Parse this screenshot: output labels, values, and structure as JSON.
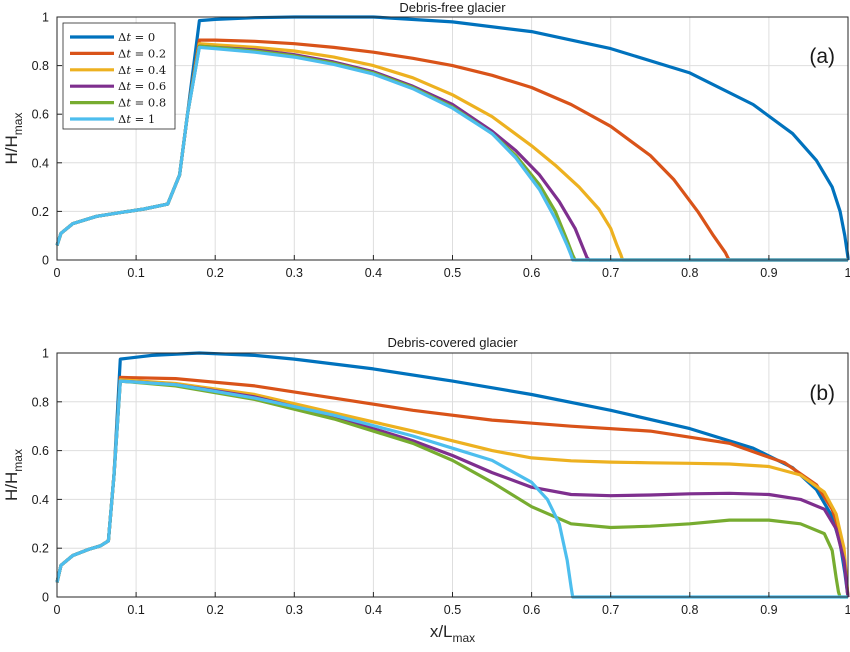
{
  "chart_data": [
    {
      "type": "line",
      "title": "Debris-free glacier",
      "panel_label": "(a)",
      "xlabel": "",
      "ylabel": "H/H",
      "ylabel_sub": "max",
      "xlim": [
        0,
        1
      ],
      "ylim": [
        0,
        1
      ],
      "xticks": [
        "0",
        "0.1",
        "0.2",
        "0.3",
        "0.4",
        "0.5",
        "0.6",
        "0.7",
        "0.8",
        "0.9",
        "1"
      ],
      "yticks": [
        "0",
        "0.2",
        "0.4",
        "0.6",
        "0.8",
        "1"
      ],
      "grid": true,
      "legend_position": "top-left",
      "series": [
        {
          "name": "Δt = 0",
          "var": "Δt",
          "val": "0",
          "color": "#0072BD",
          "x": [
            0,
            0.005,
            0.02,
            0.05,
            0.08,
            0.11,
            0.14,
            0.155,
            0.165,
            0.18,
            0.2,
            0.25,
            0.3,
            0.35,
            0.4,
            0.5,
            0.6,
            0.7,
            0.8,
            0.88,
            0.93,
            0.96,
            0.98,
            0.99,
            0.996,
            1.0,
            1.0
          ],
          "y": [
            0.06,
            0.11,
            0.15,
            0.18,
            0.195,
            0.21,
            0.23,
            0.35,
            0.6,
            0.985,
            0.99,
            0.997,
            1.0,
            1.0,
            1.0,
            0.98,
            0.94,
            0.87,
            0.77,
            0.64,
            0.52,
            0.41,
            0.3,
            0.2,
            0.1,
            0.01,
            0
          ]
        },
        {
          "name": "Δt = 0.2",
          "var": "Δt",
          "val": "0.2",
          "color": "#D95319",
          "x": [
            0,
            0.005,
            0.02,
            0.05,
            0.08,
            0.11,
            0.14,
            0.155,
            0.165,
            0.18,
            0.2,
            0.25,
            0.3,
            0.35,
            0.4,
            0.45,
            0.5,
            0.55,
            0.6,
            0.65,
            0.7,
            0.75,
            0.78,
            0.81,
            0.83,
            0.845,
            0.848,
            0.85,
            1.0
          ],
          "y": [
            0.06,
            0.11,
            0.15,
            0.18,
            0.195,
            0.21,
            0.23,
            0.35,
            0.6,
            0.905,
            0.905,
            0.9,
            0.89,
            0.875,
            0.855,
            0.83,
            0.8,
            0.76,
            0.71,
            0.64,
            0.55,
            0.43,
            0.33,
            0.2,
            0.1,
            0.03,
            0.01,
            0,
            0
          ]
        },
        {
          "name": "Δt = 0.4",
          "var": "Δt",
          "val": "0.4",
          "color": "#EDB120",
          "x": [
            0,
            0.005,
            0.02,
            0.05,
            0.08,
            0.11,
            0.14,
            0.155,
            0.165,
            0.18,
            0.2,
            0.25,
            0.3,
            0.35,
            0.4,
            0.45,
            0.5,
            0.55,
            0.6,
            0.63,
            0.66,
            0.685,
            0.7,
            0.708,
            0.713,
            0.715,
            1.0
          ],
          "y": [
            0.06,
            0.11,
            0.15,
            0.18,
            0.195,
            0.21,
            0.23,
            0.35,
            0.6,
            0.89,
            0.885,
            0.875,
            0.86,
            0.835,
            0.8,
            0.75,
            0.68,
            0.59,
            0.47,
            0.39,
            0.3,
            0.21,
            0.13,
            0.06,
            0.02,
            0,
            0
          ]
        },
        {
          "name": "Δt = 0.6",
          "var": "Δt",
          "val": "0.6",
          "color": "#7E2F8E",
          "x": [
            0,
            0.005,
            0.02,
            0.05,
            0.08,
            0.11,
            0.14,
            0.155,
            0.165,
            0.18,
            0.2,
            0.25,
            0.3,
            0.35,
            0.4,
            0.45,
            0.5,
            0.55,
            0.58,
            0.61,
            0.635,
            0.655,
            0.665,
            0.67,
            0.673,
            1.0
          ],
          "y": [
            0.06,
            0.11,
            0.15,
            0.18,
            0.195,
            0.21,
            0.23,
            0.35,
            0.6,
            0.88,
            0.875,
            0.865,
            0.845,
            0.815,
            0.775,
            0.715,
            0.64,
            0.53,
            0.45,
            0.35,
            0.24,
            0.13,
            0.05,
            0.01,
            0,
            0
          ]
        },
        {
          "name": "Δt = 0.8",
          "var": "Δt",
          "val": "0.8",
          "color": "#77AC30",
          "x": [
            0,
            0.005,
            0.02,
            0.05,
            0.08,
            0.11,
            0.14,
            0.155,
            0.165,
            0.18,
            0.2,
            0.25,
            0.3,
            0.35,
            0.4,
            0.45,
            0.5,
            0.55,
            0.58,
            0.61,
            0.63,
            0.645,
            0.652,
            0.655,
            1.0
          ],
          "y": [
            0.06,
            0.11,
            0.15,
            0.18,
            0.195,
            0.21,
            0.23,
            0.35,
            0.6,
            0.88,
            0.875,
            0.86,
            0.84,
            0.81,
            0.77,
            0.71,
            0.63,
            0.52,
            0.43,
            0.31,
            0.2,
            0.08,
            0.02,
            0,
            0
          ]
        },
        {
          "name": "Δt = 1",
          "var": "Δt",
          "val": "1",
          "color": "#4DBEEE",
          "x": [
            0,
            0.005,
            0.02,
            0.05,
            0.08,
            0.11,
            0.14,
            0.155,
            0.165,
            0.18,
            0.2,
            0.25,
            0.3,
            0.35,
            0.4,
            0.45,
            0.5,
            0.55,
            0.58,
            0.61,
            0.63,
            0.645,
            0.65,
            0.652,
            1.0
          ],
          "y": [
            0.06,
            0.11,
            0.15,
            0.18,
            0.195,
            0.21,
            0.23,
            0.35,
            0.6,
            0.875,
            0.87,
            0.855,
            0.835,
            0.805,
            0.765,
            0.705,
            0.625,
            0.52,
            0.42,
            0.29,
            0.17,
            0.06,
            0.02,
            0,
            0
          ]
        }
      ]
    },
    {
      "type": "line",
      "title": "Debris-covered glacier",
      "panel_label": "(b)",
      "xlabel": "x/L",
      "xlabel_sub": "max",
      "ylabel": "H/H",
      "ylabel_sub": "max",
      "xlim": [
        0,
        1
      ],
      "ylim": [
        0,
        1
      ],
      "xticks": [
        "0",
        "0.1",
        "0.2",
        "0.3",
        "0.4",
        "0.5",
        "0.6",
        "0.7",
        "0.8",
        "0.9",
        "1"
      ],
      "yticks": [
        "0",
        "0.2",
        "0.4",
        "0.6",
        "0.8",
        "1"
      ],
      "grid": true,
      "series": [
        {
          "name": "Δt = 0",
          "color": "#0072BD",
          "x": [
            0,
            0.005,
            0.02,
            0.04,
            0.055,
            0.065,
            0.072,
            0.08,
            0.12,
            0.18,
            0.25,
            0.3,
            0.4,
            0.5,
            0.6,
            0.7,
            0.8,
            0.88,
            0.93,
            0.96,
            0.98,
            0.99,
            0.996,
            1.0
          ],
          "y": [
            0.06,
            0.13,
            0.17,
            0.195,
            0.21,
            0.23,
            0.5,
            0.975,
            0.99,
            1.0,
            0.99,
            0.975,
            0.935,
            0.885,
            0.83,
            0.765,
            0.69,
            0.61,
            0.53,
            0.44,
            0.33,
            0.22,
            0.1,
            0
          ]
        },
        {
          "name": "Δt = 0.2",
          "color": "#D95319",
          "x": [
            0,
            0.005,
            0.02,
            0.04,
            0.055,
            0.065,
            0.072,
            0.08,
            0.15,
            0.25,
            0.35,
            0.45,
            0.55,
            0.65,
            0.75,
            0.85,
            0.92,
            0.96,
            0.98,
            0.99,
            0.996,
            1.0
          ],
          "y": [
            0.06,
            0.13,
            0.17,
            0.195,
            0.21,
            0.23,
            0.5,
            0.9,
            0.895,
            0.865,
            0.815,
            0.765,
            0.725,
            0.7,
            0.68,
            0.63,
            0.55,
            0.46,
            0.36,
            0.26,
            0.13,
            0
          ]
        },
        {
          "name": "Δt = 0.4",
          "color": "#EDB120",
          "x": [
            0,
            0.005,
            0.02,
            0.04,
            0.055,
            0.065,
            0.072,
            0.08,
            0.15,
            0.25,
            0.35,
            0.45,
            0.5,
            0.55,
            0.6,
            0.65,
            0.7,
            0.75,
            0.8,
            0.85,
            0.9,
            0.94,
            0.97,
            0.985,
            0.995,
            1.0
          ],
          "y": [
            0.06,
            0.13,
            0.17,
            0.195,
            0.21,
            0.23,
            0.5,
            0.89,
            0.875,
            0.83,
            0.755,
            0.68,
            0.64,
            0.6,
            0.57,
            0.558,
            0.553,
            0.55,
            0.548,
            0.545,
            0.535,
            0.5,
            0.43,
            0.34,
            0.2,
            0
          ]
        },
        {
          "name": "Δt = 0.6",
          "color": "#7E2F8E",
          "x": [
            0,
            0.005,
            0.02,
            0.04,
            0.055,
            0.065,
            0.072,
            0.08,
            0.15,
            0.25,
            0.35,
            0.45,
            0.5,
            0.55,
            0.6,
            0.65,
            0.7,
            0.75,
            0.8,
            0.85,
            0.9,
            0.94,
            0.97,
            0.985,
            0.995,
            1.0
          ],
          "y": [
            0.06,
            0.13,
            0.17,
            0.195,
            0.21,
            0.23,
            0.5,
            0.885,
            0.87,
            0.82,
            0.74,
            0.64,
            0.58,
            0.51,
            0.45,
            0.42,
            0.415,
            0.418,
            0.423,
            0.425,
            0.42,
            0.4,
            0.36,
            0.28,
            0.15,
            0
          ]
        },
        {
          "name": "Δt = 0.8",
          "color": "#77AC30",
          "x": [
            0,
            0.005,
            0.02,
            0.04,
            0.055,
            0.065,
            0.072,
            0.08,
            0.15,
            0.25,
            0.35,
            0.45,
            0.5,
            0.55,
            0.6,
            0.65,
            0.7,
            0.75,
            0.8,
            0.85,
            0.9,
            0.94,
            0.97,
            0.98,
            0.985,
            0.988,
            0.99,
            1.0
          ],
          "y": [
            0.06,
            0.13,
            0.17,
            0.195,
            0.21,
            0.23,
            0.5,
            0.885,
            0.865,
            0.81,
            0.73,
            0.63,
            0.56,
            0.47,
            0.37,
            0.3,
            0.285,
            0.29,
            0.3,
            0.315,
            0.315,
            0.3,
            0.26,
            0.19,
            0.08,
            0.02,
            0,
            0
          ]
        },
        {
          "name": "Δt = 1",
          "color": "#4DBEEE",
          "x": [
            0,
            0.005,
            0.02,
            0.04,
            0.055,
            0.065,
            0.072,
            0.08,
            0.15,
            0.25,
            0.35,
            0.45,
            0.5,
            0.55,
            0.6,
            0.62,
            0.635,
            0.645,
            0.65,
            0.652,
            1.0
          ],
          "y": [
            0.06,
            0.13,
            0.17,
            0.195,
            0.21,
            0.23,
            0.5,
            0.885,
            0.87,
            0.815,
            0.745,
            0.66,
            0.61,
            0.56,
            0.47,
            0.4,
            0.3,
            0.15,
            0.04,
            0,
            0
          ]
        }
      ]
    }
  ]
}
